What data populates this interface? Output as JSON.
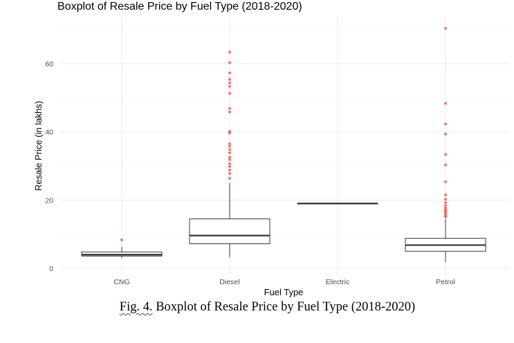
{
  "chart_data": {
    "type": "boxplot",
    "title": "Boxplot of Resale Price by Fuel Type (2018-2020)",
    "xlabel": "Fuel Type",
    "ylabel": "Resale Price (in lakhs)",
    "categories": [
      "CNG",
      "Diesel",
      "Electric",
      "Petrol"
    ],
    "yticks": [
      "0",
      "20",
      "40",
      "60"
    ],
    "ylim": [
      -1,
      72
    ],
    "grid": true,
    "boxes": [
      {
        "category": "CNG",
        "whisker_low": 3.0,
        "q1": 3.6,
        "median": 4.0,
        "q3": 4.8,
        "whisker_high": 6.2,
        "outliers": [
          8.0
        ]
      },
      {
        "category": "Diesel",
        "whisker_low": 3.3,
        "q1": 7.2,
        "median": 9.6,
        "q3": 14.5,
        "whisker_high": 25.0,
        "outliers": [
          26,
          27.5,
          28.5,
          29.5,
          30.3,
          31.5,
          32.2,
          33.5,
          34.5,
          35.5,
          36.2,
          39.3,
          39.8,
          45.5,
          46.5,
          51,
          53,
          54,
          55,
          57,
          60,
          63
        ]
      },
      {
        "category": "Electric",
        "whisker_low": 19.0,
        "q1": 19.0,
        "median": 19.0,
        "q3": 19.0,
        "whisker_high": 19.0,
        "outliers": []
      },
      {
        "category": "Petrol",
        "whisker_low": 1.8,
        "q1": 5.0,
        "median": 6.8,
        "q3": 8.8,
        "whisker_high": 14.5,
        "outliers": [
          14.8,
          15.2,
          15.8,
          16.3,
          16.8,
          17.4,
          18.1,
          19.0,
          20.0,
          21.2,
          25.0,
          30.0,
          33.0,
          39.0,
          42.0,
          48.0,
          70.0
        ]
      }
    ],
    "colors": {
      "box_line": "#333333",
      "outlier": "#ff0000",
      "grid_major": "#ebebeb",
      "grid_minor": "#f5f5f5"
    }
  },
  "figure": {
    "caption_label": "Fig. 4.",
    "caption_text": " Boxplot of Resale Price by Fuel Type (2018-2020)"
  }
}
